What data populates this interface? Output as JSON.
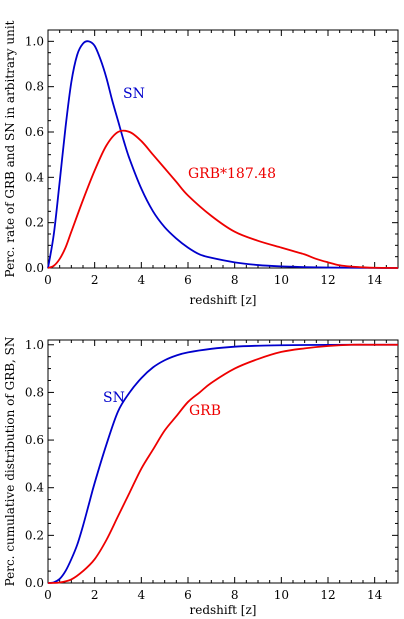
{
  "chart_data": [
    {
      "type": "line",
      "xlabel": "redshift [z]",
      "ylabel": "Perc. rate of GRB and SN in arbitrary unit",
      "xlim": [
        0,
        15
      ],
      "ylim": [
        0,
        1.05
      ],
      "xticks": [
        "0",
        "2",
        "4",
        "6",
        "8",
        "10",
        "12",
        "14"
      ],
      "yticks": [
        "0.0",
        "0.2",
        "0.4",
        "0.6",
        "0.8",
        "1.0"
      ],
      "grid": false,
      "series": [
        {
          "name": "SN",
          "color": "#0000cc",
          "x": [
            0,
            0.25,
            0.5,
            0.75,
            1.0,
            1.25,
            1.5,
            1.75,
            2.0,
            2.25,
            2.5,
            2.75,
            3.0,
            3.25,
            3.5,
            4.0,
            4.5,
            5.0,
            5.5,
            6.0,
            6.5,
            7.0,
            8.0,
            9.0,
            10.0,
            11.0,
            12.0,
            13.0,
            14.0,
            15.0
          ],
          "y": [
            0.0,
            0.15,
            0.38,
            0.62,
            0.82,
            0.94,
            0.99,
            1.0,
            0.98,
            0.92,
            0.84,
            0.74,
            0.65,
            0.56,
            0.48,
            0.35,
            0.25,
            0.18,
            0.13,
            0.09,
            0.06,
            0.045,
            0.025,
            0.013,
            0.007,
            0.004,
            0.002,
            0.001,
            0.0005,
            0.0
          ]
        },
        {
          "name": "GRB*187.48",
          "color": "#ee0000",
          "x": [
            0,
            0.25,
            0.5,
            0.75,
            1.0,
            1.5,
            2.0,
            2.5,
            3.0,
            3.5,
            4.0,
            4.5,
            5.0,
            5.5,
            6.0,
            7.0,
            8.0,
            9.0,
            10.0,
            10.5,
            11.0,
            11.5,
            12.0,
            12.5,
            13.0,
            13.5,
            14.0,
            15.0
          ],
          "y": [
            0.0,
            0.01,
            0.04,
            0.09,
            0.16,
            0.3,
            0.43,
            0.54,
            0.6,
            0.6,
            0.56,
            0.5,
            0.44,
            0.38,
            0.32,
            0.23,
            0.16,
            0.12,
            0.09,
            0.075,
            0.06,
            0.04,
            0.025,
            0.012,
            0.006,
            0.003,
            0.001,
            0.0
          ]
        }
      ]
    },
    {
      "type": "line",
      "xlabel": "redshift [z]",
      "ylabel": "Perc. cumulative distribution of GRB, SN",
      "xlim": [
        0,
        15
      ],
      "ylim": [
        0,
        1.02
      ],
      "xticks": [
        "0",
        "2",
        "4",
        "6",
        "8",
        "10",
        "12",
        "14"
      ],
      "yticks": [
        "0.0",
        "0.2",
        "0.4",
        "0.6",
        "0.8",
        "1.0"
      ],
      "grid": false,
      "series": [
        {
          "name": "SN",
          "color": "#0000cc",
          "x": [
            0,
            0.25,
            0.5,
            0.75,
            1.0,
            1.25,
            1.5,
            1.75,
            2.0,
            2.5,
            3.0,
            3.5,
            4.0,
            4.5,
            5.0,
            5.5,
            6.0,
            7.0,
            8.0,
            9.0,
            10.0,
            11.0,
            12.0,
            13.0,
            14.0,
            15.0
          ],
          "y": [
            0.0,
            0.003,
            0.017,
            0.05,
            0.1,
            0.16,
            0.24,
            0.33,
            0.42,
            0.58,
            0.72,
            0.8,
            0.86,
            0.905,
            0.935,
            0.955,
            0.968,
            0.983,
            0.992,
            0.996,
            0.998,
            0.999,
            0.9995,
            1.0,
            1.0,
            1.0
          ]
        },
        {
          "name": "GRB",
          "color": "#ee0000",
          "x": [
            0,
            0.5,
            1.0,
            1.5,
            2.0,
            2.5,
            3.0,
            3.5,
            4.0,
            4.5,
            5.0,
            5.5,
            6.0,
            6.5,
            7.0,
            8.0,
            9.0,
            10.0,
            11.0,
            12.0,
            13.0,
            14.0,
            15.0
          ],
          "y": [
            0.0,
            0.002,
            0.015,
            0.05,
            0.1,
            0.18,
            0.28,
            0.38,
            0.48,
            0.56,
            0.64,
            0.7,
            0.76,
            0.8,
            0.84,
            0.9,
            0.94,
            0.97,
            0.985,
            0.995,
            1.0,
            1.0,
            1.0
          ]
        }
      ]
    }
  ]
}
